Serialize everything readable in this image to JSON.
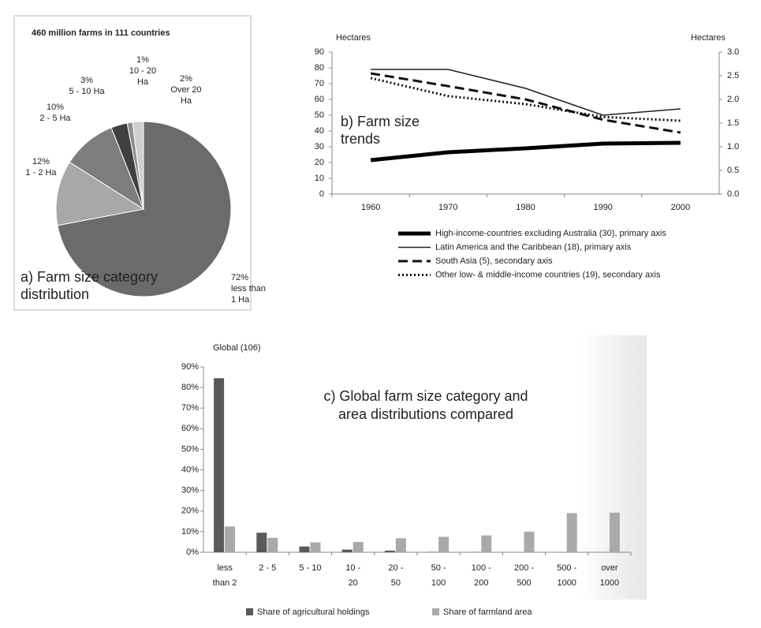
{
  "chart_data": [
    {
      "type": "pie",
      "title": "460 million farms in 111 countries",
      "annotation": "a) Farm size category distribution",
      "categories": [
        "less than 1 Ha",
        "1 - 2 Ha",
        "2 - 5 Ha",
        "5 - 10 Ha",
        "10 - 20 Ha",
        "Over 20 Ha"
      ],
      "values": [
        72,
        12,
        10,
        3,
        1,
        2
      ],
      "value_labels": [
        "72%",
        "12%",
        "10%",
        "3%",
        "1%",
        "2%"
      ],
      "colors": [
        "#6b6b6b",
        "#a8a8a8",
        "#7d7d7d",
        "#404040",
        "#8e8e8e",
        "#cfcfcf"
      ]
    },
    {
      "type": "line",
      "annotation": "b) Farm size trends",
      "ylabel": "Hectares",
      "y2label": "Hectares",
      "categories": [
        "1960",
        "1970",
        "1980",
        "1990",
        "2000"
      ],
      "ylim": [
        0,
        90
      ],
      "yticks": [
        0,
        10,
        20,
        30,
        40,
        50,
        60,
        70,
        80,
        90
      ],
      "y2lim": [
        0,
        3
      ],
      "y2ticks": [
        {
          "value": 0,
          "label": "0.0"
        },
        0.5,
        {
          "value": 1,
          "label": "1.0"
        },
        1.5,
        {
          "value": 2,
          "label": "2.0"
        },
        2.5,
        {
          "value": 3,
          "label": "3.0"
        }
      ],
      "series": [
        {
          "name": "High-income-countries excluding Australia (30), primary axis",
          "color": "#000000",
          "width": 5,
          "style": "solid",
          "values": [
            21.5,
            26.5,
            29,
            32,
            32.5
          ]
        },
        {
          "name": "Latin America and the Caribbean (18), primary axis",
          "color": "#222222",
          "width": 1.6,
          "style": "solid",
          "values": [
            79,
            79,
            67,
            50,
            54
          ]
        },
        {
          "name": "South Asia (5), secondary axis",
          "color": "#111111",
          "width": 3,
          "style": "dashed",
          "axis": "y2",
          "values": [
            2.55,
            2.28,
            2.0,
            1.57,
            1.3
          ]
        },
        {
          "name": "Other low- & middle-income countries (19), secondary axis",
          "color": "#111111",
          "width": 3,
          "style": "dotted",
          "axis": "y2",
          "values": [
            2.45,
            2.07,
            1.9,
            1.63,
            1.55
          ]
        }
      ]
    },
    {
      "type": "bar",
      "subtitle": "Global (106)",
      "annotation": "c) Global farm size category and area distributions compared",
      "categories": [
        "less than 2",
        "2 - 5",
        "5 - 10",
        "10 - 20",
        "20 - 50",
        "50 - 100",
        "100 - 200",
        "200 - 500",
        "500 - 1000",
        "over 1000"
      ],
      "ylim": [
        0,
        90
      ],
      "yticks": [
        {
          "value": 0,
          "label": "0%"
        },
        {
          "value": 10,
          "label": "10%"
        },
        {
          "value": 20,
          "label": "20%"
        },
        {
          "value": 30,
          "label": "30%"
        },
        {
          "value": 40,
          "label": "40%"
        },
        {
          "value": 50,
          "label": "50%"
        },
        {
          "value": 60,
          "label": "60%"
        },
        {
          "value": 70,
          "label": "70%"
        },
        {
          "value": 80,
          "label": "80%"
        },
        {
          "value": 90,
          "label": "90%"
        }
      ],
      "series": [
        {
          "name": "Share of agricultural holdings",
          "color": "#5a5a5a",
          "values": [
            84.5,
            9.5,
            2.8,
            1.3,
            0.8,
            0.2,
            0.1,
            0,
            0,
            0
          ]
        },
        {
          "name": "Share of farmland area",
          "color": "#a9a9a9",
          "values": [
            12.5,
            7,
            4.8,
            5,
            6.8,
            7.5,
            8.2,
            10,
            19,
            19.2
          ]
        }
      ]
    }
  ]
}
